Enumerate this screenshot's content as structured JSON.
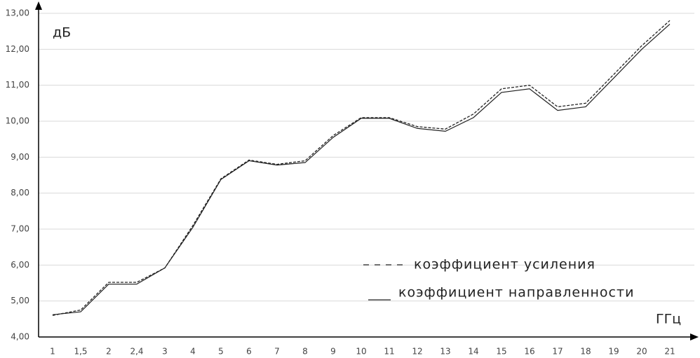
{
  "chart_data": {
    "type": "line",
    "y_label": "дБ",
    "x_label": "ГГц",
    "categories": [
      "1",
      "1,5",
      "2",
      "2,4",
      "3",
      "4",
      "5",
      "6",
      "7",
      "8",
      "9",
      "10",
      "11",
      "12",
      "13",
      "14",
      "15",
      "16",
      "17",
      "18",
      "19",
      "20",
      "21"
    ],
    "series": [
      {
        "name": "коэффициент усиления",
        "color": "#222222",
        "dash": true,
        "values": [
          4.6,
          4.75,
          5.52,
          5.52,
          5.92,
          7.1,
          8.4,
          8.92,
          8.8,
          8.9,
          9.6,
          10.1,
          10.1,
          9.85,
          9.78,
          10.2,
          10.9,
          11.0,
          10.4,
          10.5,
          11.3,
          12.1,
          12.8
        ]
      },
      {
        "name": "коэффициент направленности",
        "color": "#222222",
        "dash": false,
        "values": [
          4.62,
          4.7,
          5.47,
          5.47,
          5.92,
          7.05,
          8.38,
          8.9,
          8.78,
          8.85,
          9.55,
          10.08,
          10.08,
          9.8,
          9.72,
          10.1,
          10.8,
          10.9,
          10.3,
          10.4,
          11.2,
          12.0,
          12.7
        ]
      }
    ],
    "ylim": [
      4,
      13
    ],
    "yticks": [
      {
        "value": 4,
        "label": "4,00"
      },
      {
        "value": 5,
        "label": "5,00"
      },
      {
        "value": 6,
        "label": "6,00"
      },
      {
        "value": 7,
        "label": "7,00"
      },
      {
        "value": 8,
        "label": "8,00"
      },
      {
        "value": 9,
        "label": "9,00"
      },
      {
        "value": 10,
        "label": "10,00"
      },
      {
        "value": 11,
        "label": "11,00"
      },
      {
        "value": 12,
        "label": "12,00"
      },
      {
        "value": 13,
        "label": "13,00"
      }
    ],
    "grid": true
  }
}
